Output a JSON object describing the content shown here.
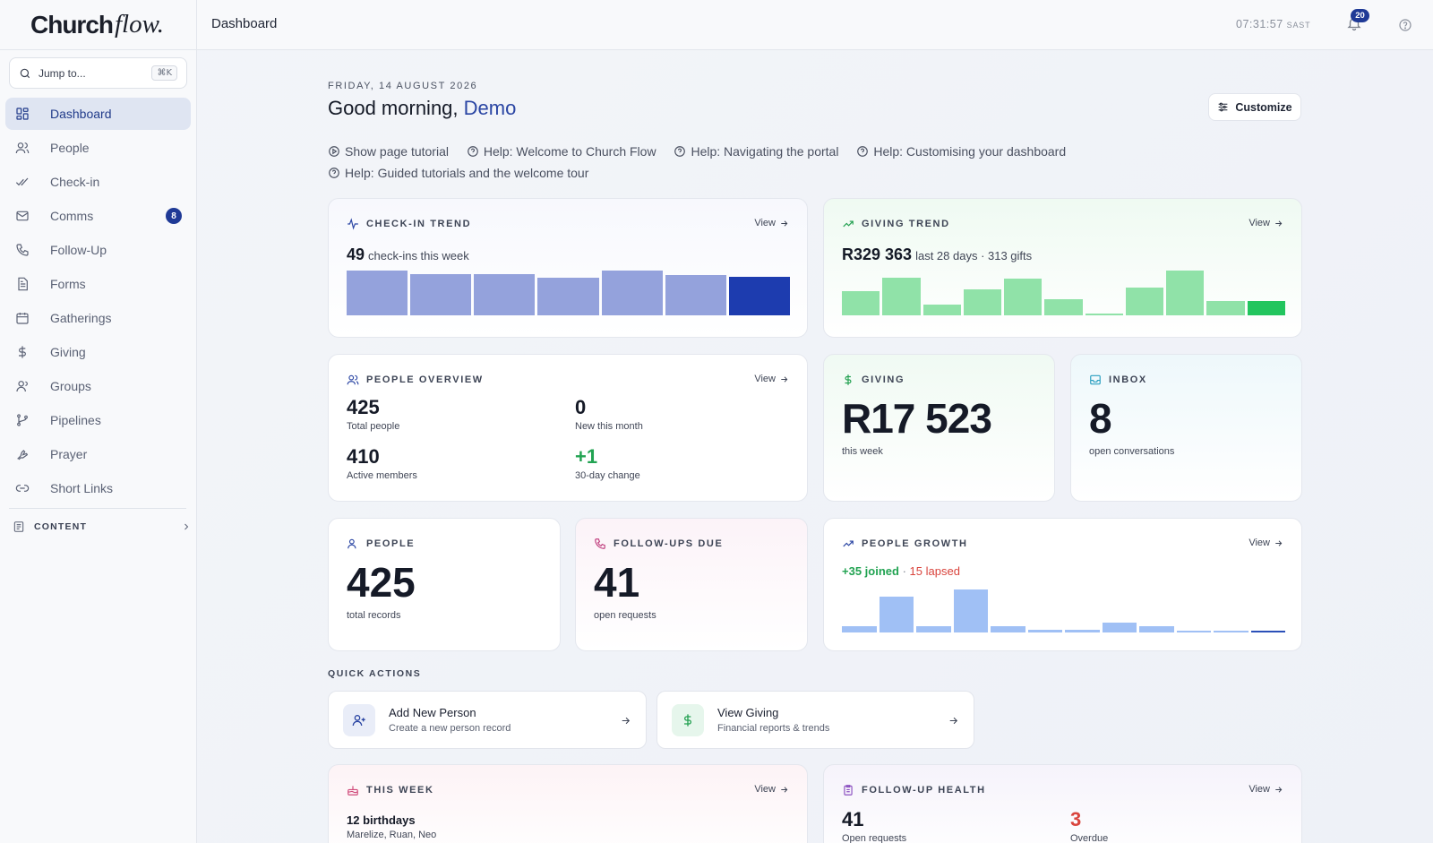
{
  "app": {
    "logo_part1": "Church",
    "logo_part2": "flow."
  },
  "search": {
    "placeholder": "Jump to...",
    "shortcut": "⌘K"
  },
  "sidebar": {
    "items": [
      {
        "label": "Dashboard",
        "icon": "grid-icon",
        "active": true
      },
      {
        "label": "People",
        "icon": "people-icon"
      },
      {
        "label": "Check-in",
        "icon": "double-check-icon"
      },
      {
        "label": "Comms",
        "icon": "mail-icon",
        "badge": "8"
      },
      {
        "label": "Follow-Up",
        "icon": "phone-icon"
      },
      {
        "label": "Forms",
        "icon": "document-icon"
      },
      {
        "label": "Gatherings",
        "icon": "calendar-icon"
      },
      {
        "label": "Giving",
        "icon": "dollar-icon"
      },
      {
        "label": "Groups",
        "icon": "group-icon"
      },
      {
        "label": "Pipelines",
        "icon": "branch-icon"
      },
      {
        "label": "Prayer",
        "icon": "praying-hands-icon"
      },
      {
        "label": "Short Links",
        "icon": "link-icon"
      }
    ],
    "content_section": "CONTENT"
  },
  "header": {
    "title": "Dashboard",
    "time": "07:31:57",
    "timezone": "SAST",
    "notifications": "20"
  },
  "main": {
    "date": "FRIDAY, 14 AUGUST 2026",
    "greeting": "Good morning,",
    "user_name": "Demo",
    "customize_label": "Customize",
    "help_links": [
      "Show page tutorial",
      "Help: Welcome to Church Flow",
      "Help: Navigating the portal",
      "Help: Customising your dashboard",
      "Help: Guided tutorials and the welcome tour"
    ]
  },
  "cards": {
    "view_label": "View",
    "checkin_trend": {
      "title": "CHECK-IN TREND",
      "value": "49",
      "caption": "check-ins this week"
    },
    "giving_trend": {
      "title": "GIVING TREND",
      "value": "R329 363",
      "caption": "last 28 days · 313 gifts"
    },
    "people_overview": {
      "title": "PEOPLE OVERVIEW",
      "stats": [
        {
          "value": "425",
          "label": "Total people"
        },
        {
          "value": "0",
          "label": "New this month"
        },
        {
          "value": "410",
          "label": "Active members"
        },
        {
          "value": "+1",
          "label": "30-day change"
        }
      ]
    },
    "giving": {
      "title": "GIVING",
      "value": "R17 523",
      "caption": "this week"
    },
    "inbox": {
      "title": "INBOX",
      "value": "8",
      "caption": "open conversations"
    },
    "people": {
      "title": "PEOPLE",
      "value": "425",
      "caption": "total records"
    },
    "followups_due": {
      "title": "FOLLOW-UPS DUE",
      "value": "41",
      "caption": "open requests"
    },
    "people_growth": {
      "title": "PEOPLE GROWTH",
      "joined": "+35 joined",
      "separator": "·",
      "lapsed": "15 lapsed"
    },
    "this_week": {
      "title": "THIS WEEK",
      "value": "12 birthdays",
      "caption": "Marelize, Ruan, Neo"
    },
    "followup_health": {
      "title": "FOLLOW-UP HEALTH",
      "open_value": "41",
      "open_label": "Open requests",
      "overdue_value": "3",
      "overdue_label": "Overdue"
    }
  },
  "quick_actions": {
    "title": "QUICK ACTIONS",
    "items": [
      {
        "title": "Add New Person",
        "subtitle": "Create a new person record",
        "icon": "add-person-icon"
      },
      {
        "title": "View Giving",
        "subtitle": "Financial reports & trends",
        "icon": "dollar-icon"
      }
    ]
  },
  "chart_data": [
    {
      "type": "bar",
      "name": "check-in-trend",
      "values": [
        48,
        44,
        44,
        40,
        48,
        43,
        41
      ],
      "highlight_last": true,
      "colors": {
        "bar": "#94a2dc",
        "last": "#1d3caf"
      }
    },
    {
      "type": "bar",
      "name": "giving-trend",
      "values": [
        26,
        40,
        12,
        28,
        39,
        17,
        2,
        30,
        48,
        15,
        15
      ],
      "highlight_last": true,
      "colors": {
        "bar": "#90e2a8",
        "last": "#22c55e"
      }
    },
    {
      "type": "bar",
      "name": "people-growth",
      "values": [
        7,
        40,
        7,
        48,
        7,
        3,
        3,
        11,
        7,
        1,
        1,
        2
      ],
      "highlight_last": true,
      "colors": {
        "bar": "#a0c0f5",
        "last": "#2b50b8"
      }
    }
  ]
}
